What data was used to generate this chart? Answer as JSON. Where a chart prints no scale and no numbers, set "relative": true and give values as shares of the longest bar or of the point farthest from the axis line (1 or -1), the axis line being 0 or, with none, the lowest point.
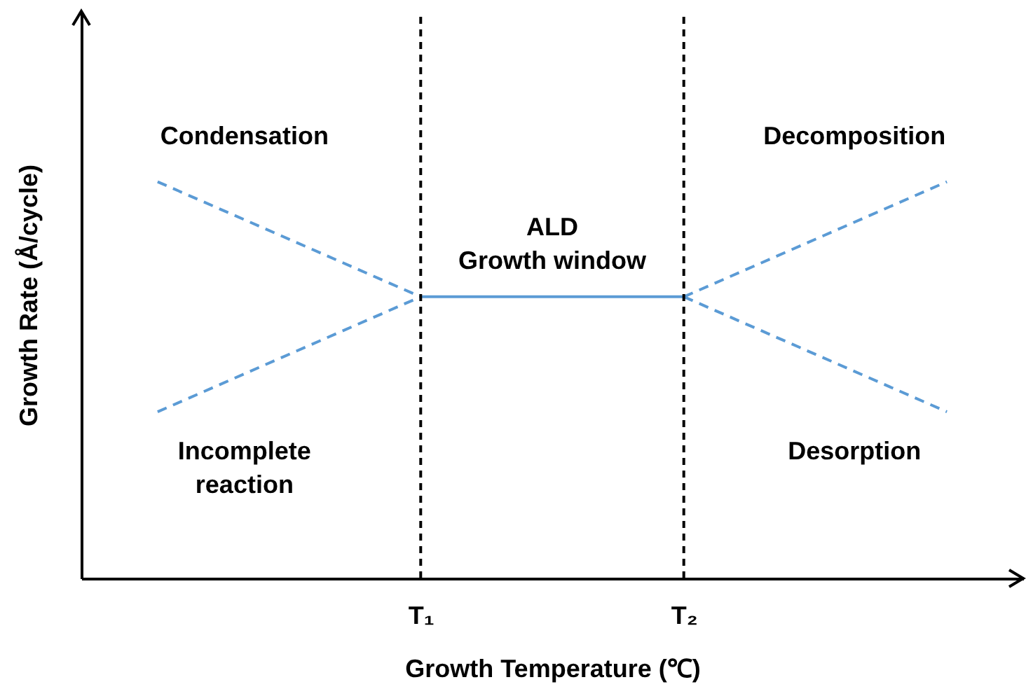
{
  "chart_data": {
    "type": "line",
    "relative": true,
    "xlabel": "Growth Temperature (℃)",
    "ylabel": "Growth Rate (Å/cycle)",
    "categories": [
      null,
      "T₁",
      "T₂",
      null
    ],
    "grid": false,
    "line_style": "dashed",
    "marker": "none",
    "ref_lines": [
      {
        "axis": "x",
        "value": "T₁",
        "color": "#000000",
        "line_style": "dashed"
      },
      {
        "axis": "x",
        "value": "T₂",
        "color": "#000000",
        "line_style": "dashed"
      }
    ],
    "series": [
      {
        "name": "Condensation",
        "color": "#5b9bd5",
        "values": [
          1,
          0.71,
          null,
          null
        ]
      },
      {
        "name": "Incomplete\nreaction",
        "color": "#5b9bd5",
        "values": [
          0.42,
          0.71,
          null,
          null
        ]
      },
      {
        "name": "ALD\nGrowth window",
        "color": "#5b9bd5",
        "values": [
          null,
          0.71,
          0.71,
          null
        ],
        "line_style": "solid"
      },
      {
        "name": "Decomposition",
        "color": "#5b9bd5",
        "values": [
          null,
          null,
          0.71,
          1
        ]
      },
      {
        "name": "Desorption",
        "color": "#5b9bd5",
        "values": [
          null,
          null,
          0.71,
          0.42
        ]
      }
    ]
  }
}
